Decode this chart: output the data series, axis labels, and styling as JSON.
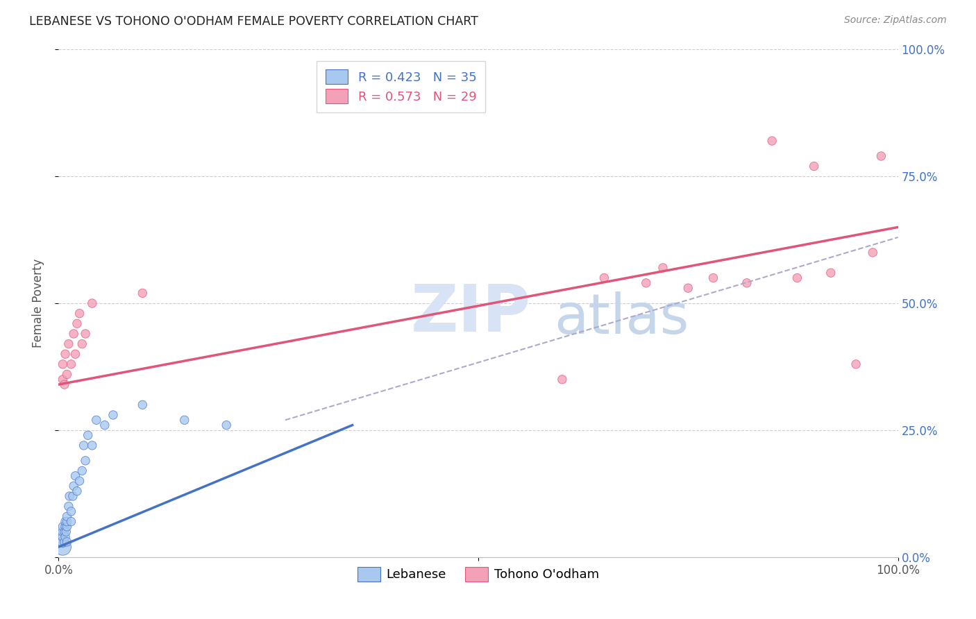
{
  "title": "LEBANESE VS TOHONO O'ODHAM FEMALE POVERTY CORRELATION CHART",
  "source_text": "Source: ZipAtlas.com",
  "ylabel": "Female Poverty",
  "xlim": [
    0,
    1
  ],
  "ylim": [
    0,
    1
  ],
  "xtick_labels": [
    "0.0%",
    "100.0%"
  ],
  "ytick_labels": [
    "0.0%",
    "25.0%",
    "50.0%",
    "75.0%",
    "100.0%"
  ],
  "ytick_positions": [
    0,
    0.25,
    0.5,
    0.75,
    1.0
  ],
  "color_blue": "#A8C8F0",
  "color_pink": "#F4A0B8",
  "color_blue_line": "#4472C4",
  "color_pink_line": "#E05578",
  "color_blue_text": "#4472C4",
  "color_pink_text": "#E05578",
  "color_dashed": "#AAAACC",
  "legend_label_lebanese": "Lebanese",
  "legend_label_tohono": "Tohono O'odham",
  "R_blue": 0.423,
  "N_blue": 35,
  "R_pink": 0.573,
  "N_pink": 29,
  "background_color": "#FFFFFF",
  "grid_color": "#CCCCCC",
  "blue_x": [
    0.005,
    0.005,
    0.005,
    0.005,
    0.005,
    0.007,
    0.007,
    0.008,
    0.008,
    0.008,
    0.009,
    0.01,
    0.01,
    0.01,
    0.01,
    0.012,
    0.013,
    0.015,
    0.015,
    0.017,
    0.018,
    0.02,
    0.022,
    0.025,
    0.028,
    0.03,
    0.032,
    0.035,
    0.04,
    0.045,
    0.055,
    0.065,
    0.1,
    0.15,
    0.2
  ],
  "blue_y": [
    0.02,
    0.03,
    0.04,
    0.05,
    0.06,
    0.03,
    0.05,
    0.04,
    0.06,
    0.07,
    0.05,
    0.03,
    0.06,
    0.07,
    0.08,
    0.1,
    0.12,
    0.07,
    0.09,
    0.12,
    0.14,
    0.16,
    0.13,
    0.15,
    0.17,
    0.22,
    0.19,
    0.24,
    0.22,
    0.27,
    0.26,
    0.28,
    0.3,
    0.27,
    0.26
  ],
  "blue_sizes": [
    300,
    120,
    90,
    90,
    80,
    80,
    80,
    80,
    80,
    80,
    80,
    80,
    80,
    80,
    80,
    80,
    80,
    80,
    80,
    80,
    80,
    80,
    80,
    80,
    80,
    80,
    80,
    80,
    80,
    80,
    80,
    80,
    80,
    80,
    80
  ],
  "pink_x": [
    0.005,
    0.005,
    0.007,
    0.008,
    0.01,
    0.012,
    0.015,
    0.018,
    0.02,
    0.022,
    0.025,
    0.028,
    0.032,
    0.04,
    0.1,
    0.6,
    0.65,
    0.7,
    0.72,
    0.75,
    0.78,
    0.82,
    0.85,
    0.88,
    0.9,
    0.92,
    0.95,
    0.97,
    0.98
  ],
  "pink_y": [
    0.35,
    0.38,
    0.34,
    0.4,
    0.36,
    0.42,
    0.38,
    0.44,
    0.4,
    0.46,
    0.48,
    0.42,
    0.44,
    0.5,
    0.52,
    0.35,
    0.55,
    0.54,
    0.57,
    0.53,
    0.55,
    0.54,
    0.82,
    0.55,
    0.77,
    0.56,
    0.38,
    0.6,
    0.79
  ],
  "pink_sizes": [
    80,
    80,
    80,
    80,
    80,
    80,
    80,
    80,
    80,
    80,
    80,
    80,
    80,
    80,
    80,
    80,
    80,
    80,
    80,
    80,
    80,
    80,
    80,
    80,
    80,
    80,
    80,
    80,
    80
  ],
  "blue_line_x0": 0.0,
  "blue_line_x1": 0.35,
  "blue_line_y0": 0.02,
  "blue_line_y1": 0.26,
  "pink_line_x0": 0.0,
  "pink_line_x1": 1.0,
  "pink_line_y0": 0.34,
  "pink_line_y1": 0.65,
  "dash_line_x0": 0.27,
  "dash_line_x1": 1.0,
  "dash_line_y0": 0.27,
  "dash_line_y1": 0.63
}
